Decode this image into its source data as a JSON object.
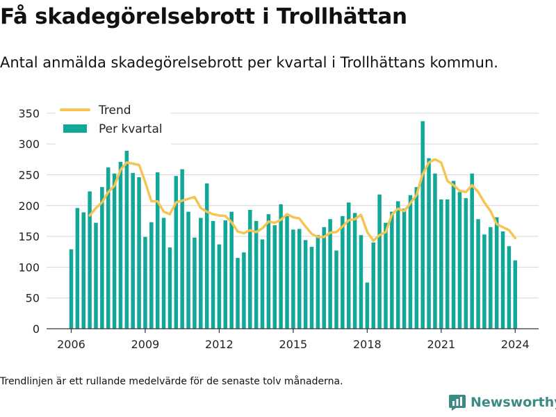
{
  "header": {
    "title": "Få skadegörelsebrott i Trollhättan",
    "subtitle": "Antal anmälda skadegörelsebrott per kvartal i Trollhättans kommun."
  },
  "footer": {
    "note": "Trendlinjen är ett rullande medelvärde för de senaste tolv månaderna.",
    "brand": "Newsworthy",
    "brand_icon": "newsworthy-logo-icon"
  },
  "colors": {
    "bar": "#12a899",
    "trend": "#f6c453",
    "brand": "#3c8a83",
    "grid": "#d6d6d6"
  },
  "chart_data": {
    "type": "bar",
    "title": "",
    "xlabel": "",
    "ylabel": "",
    "ylim": [
      0,
      360
    ],
    "yticks": [
      0,
      50,
      100,
      150,
      200,
      250,
      300,
      350
    ],
    "xticks": [
      2006,
      2009,
      2012,
      2015,
      2018,
      2021,
      2024
    ],
    "xlim": [
      2005.0,
      2024.95
    ],
    "grid": true,
    "legend_position": "top-left",
    "x": [
      2006.0,
      2006.25,
      2006.5,
      2006.75,
      2007.0,
      2007.25,
      2007.5,
      2007.75,
      2008.0,
      2008.25,
      2008.5,
      2008.75,
      2009.0,
      2009.25,
      2009.5,
      2009.75,
      2010.0,
      2010.25,
      2010.5,
      2010.75,
      2011.0,
      2011.25,
      2011.5,
      2011.75,
      2012.0,
      2012.25,
      2012.5,
      2012.75,
      2013.0,
      2013.25,
      2013.5,
      2013.75,
      2014.0,
      2014.25,
      2014.5,
      2014.75,
      2015.0,
      2015.25,
      2015.5,
      2015.75,
      2016.0,
      2016.25,
      2016.5,
      2016.75,
      2017.0,
      2017.25,
      2017.5,
      2017.75,
      2018.0,
      2018.25,
      2018.5,
      2018.75,
      2019.0,
      2019.25,
      2019.5,
      2019.75,
      2020.0,
      2020.25,
      2020.5,
      2020.75,
      2021.0,
      2021.25,
      2021.5,
      2021.75,
      2022.0,
      2022.25,
      2022.5,
      2022.75,
      2023.0,
      2023.25,
      2023.5,
      2023.75,
      2024.0
    ],
    "series": [
      {
        "name": "Per kvartal",
        "kind": "bar",
        "values": [
          129,
          196,
          189,
          223,
          172,
          230,
          262,
          252,
          271,
          289,
          253,
          246,
          149,
          173,
          254,
          180,
          132,
          248,
          259,
          190,
          148,
          180,
          236,
          175,
          137,
          176,
          190,
          115,
          124,
          193,
          175,
          145,
          186,
          168,
          202,
          183,
          161,
          162,
          144,
          133,
          152,
          165,
          178,
          127,
          183,
          205,
          188,
          152,
          75,
          140,
          218,
          172,
          190,
          207,
          195,
          217,
          230,
          337,
          277,
          252,
          210,
          210,
          240,
          222,
          212,
          252,
          178,
          153,
          165,
          181,
          158,
          134,
          111
        ]
      },
      {
        "name": "Trend",
        "kind": "line",
        "x": [
          2006.75,
          2007.0,
          2007.25,
          2007.5,
          2007.75,
          2008.0,
          2008.25,
          2008.5,
          2008.75,
          2009.0,
          2009.25,
          2009.5,
          2009.75,
          2010.0,
          2010.25,
          2010.5,
          2010.75,
          2011.0,
          2011.25,
          2011.5,
          2011.75,
          2012.0,
          2012.25,
          2012.5,
          2012.75,
          2013.0,
          2013.25,
          2013.5,
          2013.75,
          2014.0,
          2014.25,
          2014.5,
          2014.75,
          2015.0,
          2015.25,
          2015.5,
          2015.75,
          2016.0,
          2016.25,
          2016.5,
          2016.75,
          2017.0,
          2017.25,
          2017.5,
          2017.75,
          2018.0,
          2018.25,
          2018.5,
          2018.75,
          2019.0,
          2019.25,
          2019.5,
          2019.75,
          2020.0,
          2020.25,
          2020.5,
          2020.75,
          2021.0,
          2021.25,
          2021.5,
          2021.75,
          2022.0,
          2022.25,
          2022.5,
          2022.75,
          2023.0,
          2023.25,
          2023.5,
          2023.75,
          2024.0
        ],
        "values": [
          184,
          196,
          205,
          222,
          232,
          258,
          270,
          268,
          266,
          238,
          207,
          207,
          190,
          186,
          205,
          208,
          211,
          214,
          196,
          190,
          186,
          184,
          183,
          173,
          158,
          155,
          160,
          157,
          163,
          174,
          172,
          177,
          186,
          181,
          179,
          166,
          154,
          149,
          149,
          156,
          157,
          166,
          176,
          178,
          185,
          157,
          143,
          152,
          157,
          185,
          195,
          191,
          204,
          217,
          251,
          270,
          275,
          270,
          240,
          233,
          224,
          222,
          233,
          222,
          205,
          191,
          170,
          165,
          160,
          147
        ]
      }
    ]
  }
}
